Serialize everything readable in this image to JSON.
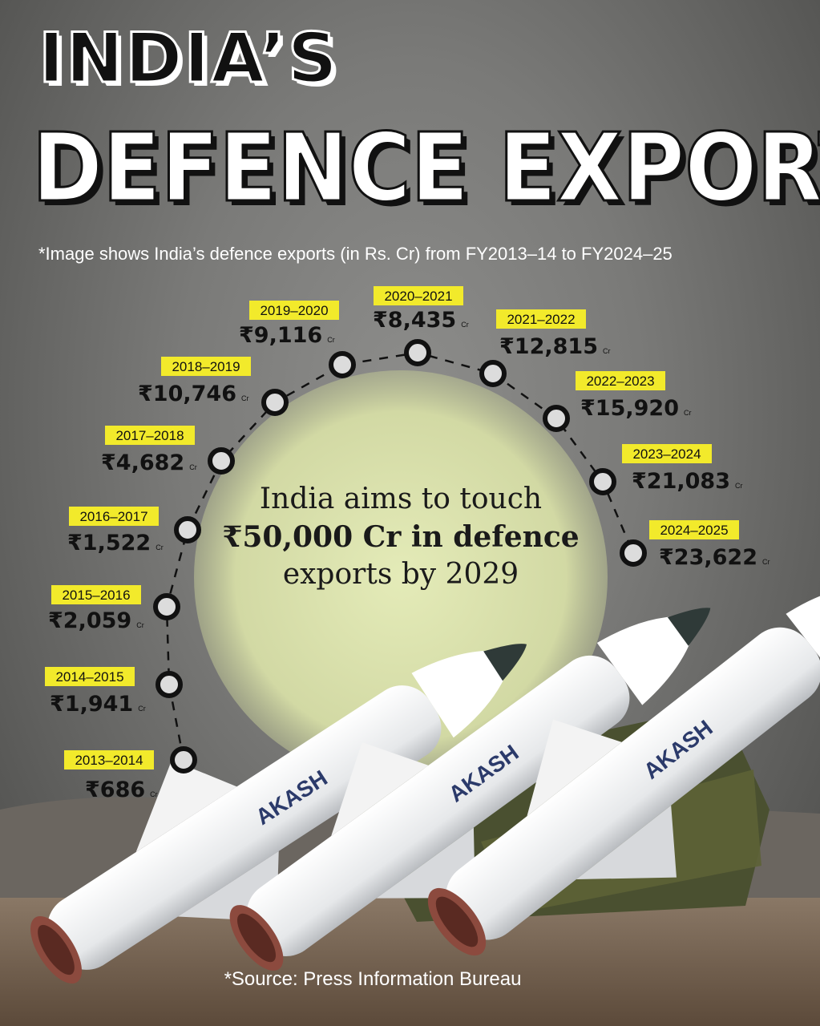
{
  "title_line1": "INDIA’S",
  "title_line2": "DEFENCE EXPORTS",
  "subtitle": "*Image shows India’s defence exports (in Rs. Cr) from FY2013–14 to FY2024–25",
  "target_note": {
    "line1": "India aims to touch",
    "line2": "₹50,000 Cr in defence",
    "line3": "exports by 2029"
  },
  "source": "*Source: Press Information Bureau",
  "missile_label": "AKASH",
  "colors": {
    "tag_highlight": "#f2ea2b",
    "marker_fill": "#dcdcdc",
    "marker_ring": "#111111",
    "glow": "#dfe6b0"
  },
  "chart_data": {
    "type": "line",
    "categories": [
      "2013–2014",
      "2014–2015",
      "2015–2016",
      "2016–2017",
      "2017–2018",
      "2018–2019",
      "2019–2020",
      "2020–2021",
      "2021–2022",
      "2022–2023",
      "2023–2024",
      "2024–2025"
    ],
    "values": [
      686,
      1941,
      2059,
      1522,
      4682,
      10746,
      9116,
      8435,
      12815,
      15920,
      21083,
      23622
    ],
    "value_labels": [
      "₹686",
      "₹1,941",
      "₹2,059",
      "₹1,522",
      "₹4,682",
      "₹10,746",
      "₹9,116",
      "₹8,435",
      "₹12,815",
      "₹15,920",
      "₹21,083",
      "₹23,622"
    ],
    "unit": "Cr",
    "title": "INDIA’S DEFENCE EXPORTS"
  }
}
